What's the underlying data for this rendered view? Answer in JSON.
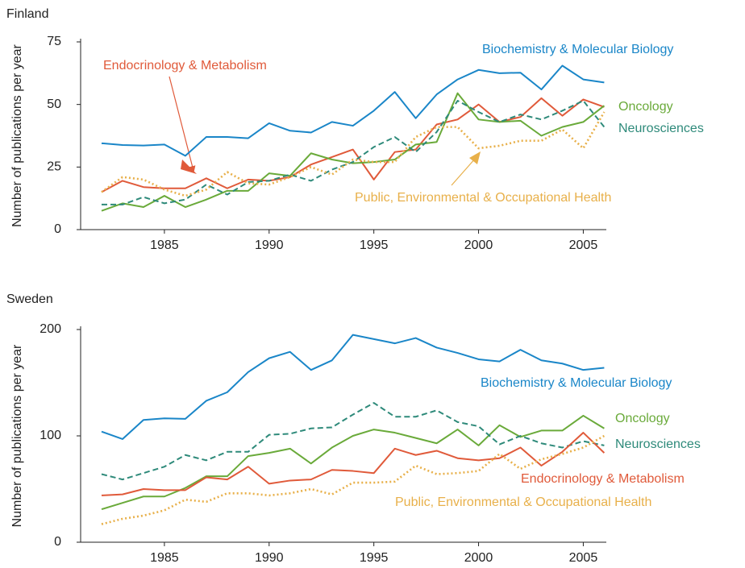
{
  "chart_data": [
    {
      "type": "line",
      "title": "Finland",
      "y_label": "Number of publications per year",
      "x": [
        1982,
        1983,
        1984,
        1985,
        1986,
        1987,
        1988,
        1989,
        1990,
        1991,
        1992,
        1993,
        1994,
        1995,
        1996,
        1997,
        1998,
        1999,
        2000,
        2001,
        2002,
        2003,
        2004,
        2005,
        2006
      ],
      "xlim": [
        1981,
        2006.1
      ],
      "xticks": [
        1985,
        1990,
        1995,
        2000,
        2005
      ],
      "ylim": [
        0,
        75
      ],
      "yticks": [
        0,
        25,
        50,
        75
      ],
      "series": [
        {
          "name": "Biochemistry & Molecular Biology",
          "color": "#1a86c8",
          "dash": "solid",
          "values": [
            34.5,
            33.8,
            33.6,
            34,
            29.5,
            37,
            37,
            36.5,
            42.5,
            39.5,
            38.8,
            43,
            41.5,
            47.5,
            55,
            44.5,
            54,
            60,
            63.8,
            62.5,
            62.7,
            56,
            65.5,
            60,
            58.8
          ]
        },
        {
          "name": "Endocrinology & Metabolism",
          "color": "#e05a3a",
          "dash": "solid",
          "values": [
            15,
            19.5,
            17,
            16.5,
            16.5,
            20.5,
            16.5,
            20,
            19.5,
            21,
            26,
            29,
            32,
            20,
            31,
            32,
            42,
            44,
            50,
            43,
            45,
            52.5,
            45.5,
            52,
            49
          ]
        },
        {
          "name": "Oncology",
          "color": "#6aaa3a",
          "dash": "solid",
          "values": [
            7.5,
            10.5,
            9,
            13.5,
            9,
            12,
            15.5,
            15.5,
            22.5,
            21.5,
            30.5,
            28,
            26.5,
            27,
            28,
            34,
            35,
            54.5,
            44,
            43,
            43.5,
            37.5,
            41,
            43,
            49.5
          ]
        },
        {
          "name": "Neurosciences",
          "color": "#2e8a7a",
          "dash": "dashed",
          "values": [
            10,
            10,
            13,
            10.5,
            12,
            18,
            14,
            19,
            19.5,
            22,
            19.5,
            24,
            27,
            33,
            37,
            31,
            39,
            51.5,
            47,
            43,
            46,
            44,
            47.5,
            51.5,
            41
          ]
        },
        {
          "name": "Public, Environmental & Occupational Health",
          "color": "#e8b04a",
          "dash": "dotted",
          "values": [
            15,
            21,
            20,
            16,
            13.5,
            16,
            23,
            18.5,
            18,
            21,
            25,
            22,
            28,
            27,
            27,
            37,
            41,
            41,
            32.5,
            33.5,
            35.5,
            35.5,
            40,
            32.5,
            47
          ]
        }
      ]
    },
    {
      "type": "line",
      "title": "Sweden",
      "y_label": "Number of publications per year",
      "x": [
        1982,
        1983,
        1984,
        1985,
        1986,
        1987,
        1988,
        1989,
        1990,
        1991,
        1992,
        1993,
        1994,
        1995,
        1996,
        1997,
        1998,
        1999,
        2000,
        2001,
        2002,
        2003,
        2004,
        2005,
        2006
      ],
      "xlim": [
        1981,
        2006.1
      ],
      "xticks": [
        1985,
        1990,
        1995,
        2000,
        2005
      ],
      "ylim": [
        0,
        200
      ],
      "yticks": [
        0,
        100,
        200
      ],
      "series": [
        {
          "name": "Biochemistry & Molecular Biology",
          "color": "#1a86c8",
          "dash": "solid",
          "values": [
            104,
            97,
            115,
            116.5,
            116,
            133,
            141,
            160,
            173,
            179,
            162,
            171,
            195,
            191,
            187,
            192,
            183,
            178,
            172,
            170,
            181,
            171,
            168,
            162,
            164
          ]
        },
        {
          "name": "Oncology",
          "color": "#6aaa3a",
          "dash": "solid",
          "values": [
            31,
            37,
            43,
            43,
            51,
            62,
            62,
            81,
            84,
            88,
            74,
            89,
            100,
            106,
            103,
            98,
            93,
            106,
            91,
            110,
            99,
            105,
            105,
            119,
            107
          ]
        },
        {
          "name": "Neurosciences",
          "color": "#2e8a7a",
          "dash": "dashed",
          "values": [
            64,
            59,
            65,
            71,
            82,
            77,
            85,
            85,
            101,
            102,
            107,
            108,
            120,
            131,
            118,
            118,
            124,
            113,
            109,
            92,
            100,
            93,
            89,
            95,
            91
          ]
        },
        {
          "name": "Endocrinology & Metabolism",
          "color": "#e05a3a",
          "dash": "solid",
          "values": [
            44,
            45,
            50,
            49,
            49,
            61,
            59,
            71,
            55,
            58,
            59,
            68,
            67,
            65,
            88,
            82,
            86,
            79,
            77,
            79,
            89,
            72,
            85,
            103,
            84
          ]
        },
        {
          "name": "Public, Environmental & Occupational Health",
          "color": "#e8b04a",
          "dash": "dotted",
          "values": [
            17,
            22,
            25,
            30,
            40,
            38,
            46,
            46,
            44,
            46,
            50,
            45,
            56,
            56,
            57,
            72,
            64,
            65,
            67,
            83,
            69,
            78,
            83,
            89,
            100
          ]
        }
      ]
    }
  ]
}
